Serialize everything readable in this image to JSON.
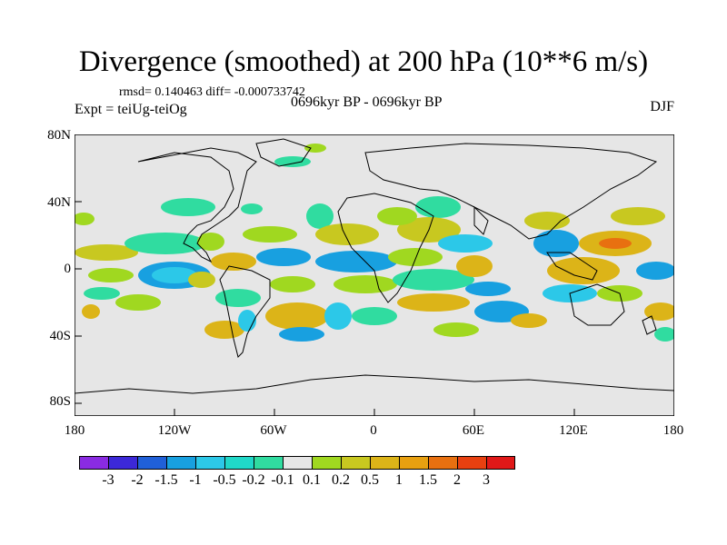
{
  "title": "Divergence (smoothed) at 200 hPa (10**6 m/s)",
  "stats": "rmsd= 0.140463  diff= -0.000733742",
  "experiment": "Expt = teiUg-teiOg",
  "period": "0696kyr BP - 0696kyr BP",
  "season": "DJF",
  "lat_labels": [
    "80N",
    "40N",
    "0",
    "40S",
    "80S"
  ],
  "lon_labels": [
    "180",
    "120W",
    "60W",
    "0",
    "60E",
    "120E",
    "180"
  ],
  "colorbar": {
    "colors": [
      "#8a2be2",
      "#3c28d8",
      "#2060d8",
      "#18a0e0",
      "#2cc8e8",
      "#20d8c8",
      "#30dca0",
      "#e6e6e6",
      "#a0d820",
      "#c8c820",
      "#dcb418",
      "#e8a010",
      "#e87010",
      "#e84010",
      "#e01818"
    ],
    "labels": [
      "-3",
      "-2",
      "-1.5",
      "-1",
      "-0.5",
      "-0.2",
      "-0.1",
      "0.1",
      "0.2",
      "0.5",
      "1",
      "1.5",
      "2",
      "3"
    ]
  }
}
